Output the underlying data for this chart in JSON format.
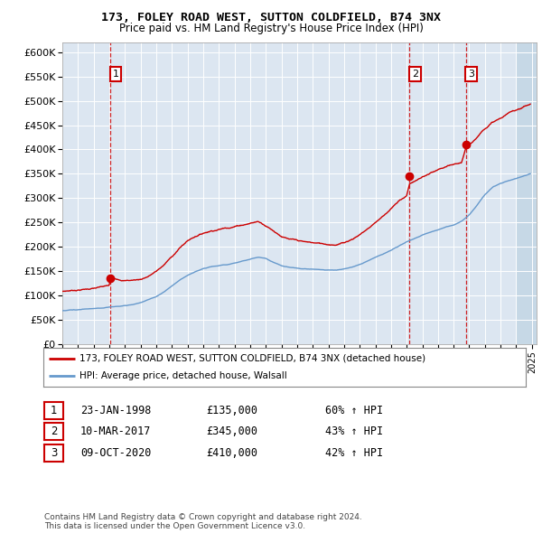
{
  "title1": "173, FOLEY ROAD WEST, SUTTON COLDFIELD, B74 3NX",
  "title2": "Price paid vs. HM Land Registry's House Price Index (HPI)",
  "ylim": [
    0,
    620000
  ],
  "yticks": [
    0,
    50000,
    100000,
    150000,
    200000,
    250000,
    300000,
    350000,
    400000,
    450000,
    500000,
    550000,
    600000
  ],
  "ytick_labels": [
    "£0",
    "£50K",
    "£100K",
    "£150K",
    "£200K",
    "£250K",
    "£300K",
    "£350K",
    "£400K",
    "£450K",
    "£500K",
    "£550K",
    "£600K"
  ],
  "background_color": "#dce6f1",
  "hatch_color": "#b8cfe0",
  "sale_prices": [
    135000,
    345000,
    410000
  ],
  "sale_labels": [
    "1",
    "2",
    "3"
  ],
  "sale_decimal_dates": [
    1998.063,
    2017.187,
    2020.772
  ],
  "sale_info": [
    [
      "1",
      "23-JAN-1998",
      "£135,000",
      "60% ↑ HPI"
    ],
    [
      "2",
      "10-MAR-2017",
      "£345,000",
      "43% ↑ HPI"
    ],
    [
      "3",
      "09-OCT-2020",
      "£410,000",
      "42% ↑ HPI"
    ]
  ],
  "legend_line1": "173, FOLEY ROAD WEST, SUTTON COLDFIELD, B74 3NX (detached house)",
  "legend_line2": "HPI: Average price, detached house, Walsall",
  "footnote": "Contains HM Land Registry data © Crown copyright and database right 2024.\nThis data is licensed under the Open Government Licence v3.0.",
  "red_color": "#cc0000",
  "blue_color": "#6699cc"
}
